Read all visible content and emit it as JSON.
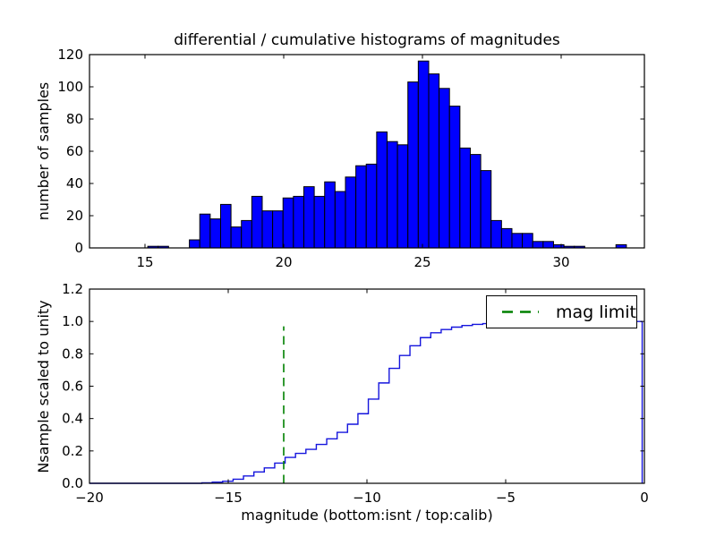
{
  "figure_title": "differential / cumulative histograms of magnitudes",
  "colors": {
    "background": "#ffffff",
    "bar_fill": "#0000ff",
    "bar_edge": "#000000",
    "curve": "#1515dd",
    "mag_limit_line": "#008000",
    "axis": "#000000",
    "text": "#000000"
  },
  "chart_data": [
    {
      "type": "bar",
      "subtype": "histogram",
      "title": "differential / cumulative histograms of magnitudes",
      "xlabel": "",
      "ylabel": "number of samples",
      "xlim": [
        13,
        33
      ],
      "ylim": [
        0,
        120
      ],
      "grid": false,
      "xticks": {
        "values": [
          15,
          20,
          25,
          30
        ],
        "labels": [
          "15",
          "20",
          "25",
          "30"
        ]
      },
      "yticks": {
        "values": [
          0,
          20,
          40,
          60,
          80,
          100,
          120
        ],
        "labels": [
          "0",
          "20",
          "40",
          "60",
          "80",
          "100",
          "120"
        ]
      },
      "bins": {
        "start": 15.1,
        "width": 0.375
      },
      "counts": [
        1,
        1,
        0,
        0,
        5,
        21,
        18,
        27,
        13,
        17,
        32,
        23,
        23,
        31,
        32,
        38,
        32,
        41,
        35,
        44,
        51,
        52,
        72,
        66,
        64,
        103,
        116,
        108,
        99,
        88,
        62,
        58,
        48,
        17,
        12,
        9,
        9,
        4,
        4,
        2,
        1,
        1,
        0,
        0,
        0,
        2
      ]
    },
    {
      "type": "line",
      "subtype": "cumulative-step",
      "title": "",
      "xlabel": "magnitude (bottom:isnt / top:calib)",
      "ylabel": "Nsample scaled to unity",
      "xlim": [
        -20,
        0
      ],
      "ylim": [
        0,
        1.2
      ],
      "grid": false,
      "xticks": {
        "values": [
          -20,
          -15,
          -10,
          -5,
          0
        ],
        "labels": [
          "−20",
          "−15",
          "−10",
          "−5",
          "0"
        ]
      },
      "yticks": {
        "values": [
          0,
          0.2,
          0.4,
          0.6,
          0.8,
          1.0,
          1.2
        ],
        "labels": [
          "0.0",
          "0.2",
          "0.4",
          "0.6",
          "0.8",
          "1.0",
          "1.2"
        ]
      },
      "steps": [
        [
          -15.95,
          0.003
        ],
        [
          -15.575,
          0.007
        ],
        [
          -15.2,
          0.013
        ],
        [
          -14.825,
          0.025
        ],
        [
          -14.45,
          0.045
        ],
        [
          -14.075,
          0.07
        ],
        [
          -13.7,
          0.095
        ],
        [
          -13.325,
          0.125
        ],
        [
          -12.95,
          0.16
        ],
        [
          -12.575,
          0.185
        ],
        [
          -12.2,
          0.21
        ],
        [
          -11.825,
          0.24
        ],
        [
          -11.45,
          0.275
        ],
        [
          -11.075,
          0.315
        ],
        [
          -10.7,
          0.365
        ],
        [
          -10.325,
          0.43
        ],
        [
          -9.95,
          0.52
        ],
        [
          -9.575,
          0.62
        ],
        [
          -9.2,
          0.71
        ],
        [
          -8.825,
          0.79
        ],
        [
          -8.45,
          0.85
        ],
        [
          -8.075,
          0.9
        ],
        [
          -7.7,
          0.93
        ],
        [
          -7.325,
          0.95
        ],
        [
          -6.95,
          0.965
        ],
        [
          -6.575,
          0.975
        ],
        [
          -6.2,
          0.982
        ],
        [
          -5.825,
          0.987
        ],
        [
          -5.45,
          0.991
        ],
        [
          -5.075,
          0.994
        ],
        [
          -4.7,
          0.996
        ],
        [
          -4.325,
          0.997
        ],
        [
          -3.95,
          0.998
        ],
        [
          -3.575,
          0.999
        ],
        [
          -3.2,
          1.0
        ]
      ],
      "curve_start_x": -20,
      "curve_end_x": -0.08,
      "mag_limit": {
        "x": -13,
        "y_from": 0,
        "y_to": 0.97,
        "style": "dashed"
      },
      "legend": {
        "label": "mag limit",
        "position": "upper right"
      }
    }
  ]
}
